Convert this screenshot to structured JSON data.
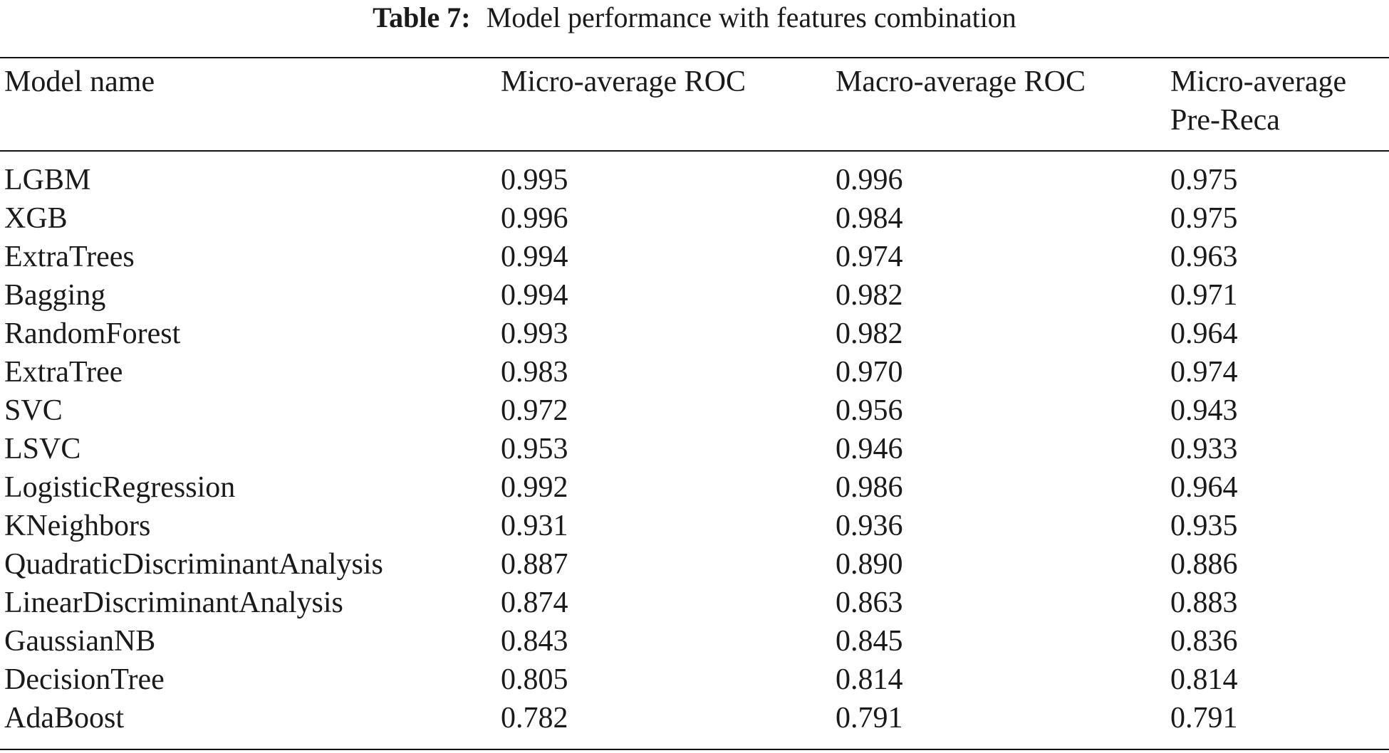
{
  "caption": {
    "label": "Table 7:",
    "text": "Model performance with features combination"
  },
  "columns": [
    "Model name",
    "Micro-average ROC",
    "Macro-average ROC",
    "Micro-average Pre-Reca"
  ],
  "header_lines": {
    "col3_line1": "Micro-average",
    "col3_line2": "Pre-Reca"
  },
  "rows": [
    [
      "LGBM",
      "0.995",
      "0.996",
      "0.975"
    ],
    [
      "XGB",
      "0.996",
      "0.984",
      "0.975"
    ],
    [
      "ExtraTrees",
      "0.994",
      "0.974",
      "0.963"
    ],
    [
      "Bagging",
      "0.994",
      "0.982",
      "0.971"
    ],
    [
      "RandomForest",
      "0.993",
      "0.982",
      "0.964"
    ],
    [
      "ExtraTree",
      "0.983",
      "0.970",
      "0.974"
    ],
    [
      "SVC",
      "0.972",
      "0.956",
      "0.943"
    ],
    [
      "LSVC",
      "0.953",
      "0.946",
      "0.933"
    ],
    [
      "LogisticRegression",
      "0.992",
      "0.986",
      "0.964"
    ],
    [
      "KNeighbors",
      "0.931",
      "0.936",
      "0.935"
    ],
    [
      "QuadraticDiscriminantAnalysis",
      "0.887",
      "0.890",
      "0.886"
    ],
    [
      "LinearDiscriminantAnalysis",
      "0.874",
      "0.863",
      "0.883"
    ],
    [
      "GaussianNB",
      "0.843",
      "0.845",
      "0.836"
    ],
    [
      "DecisionTree",
      "0.805",
      "0.814",
      "0.814"
    ],
    [
      "AdaBoost",
      "0.782",
      "0.791",
      "0.791"
    ]
  ]
}
